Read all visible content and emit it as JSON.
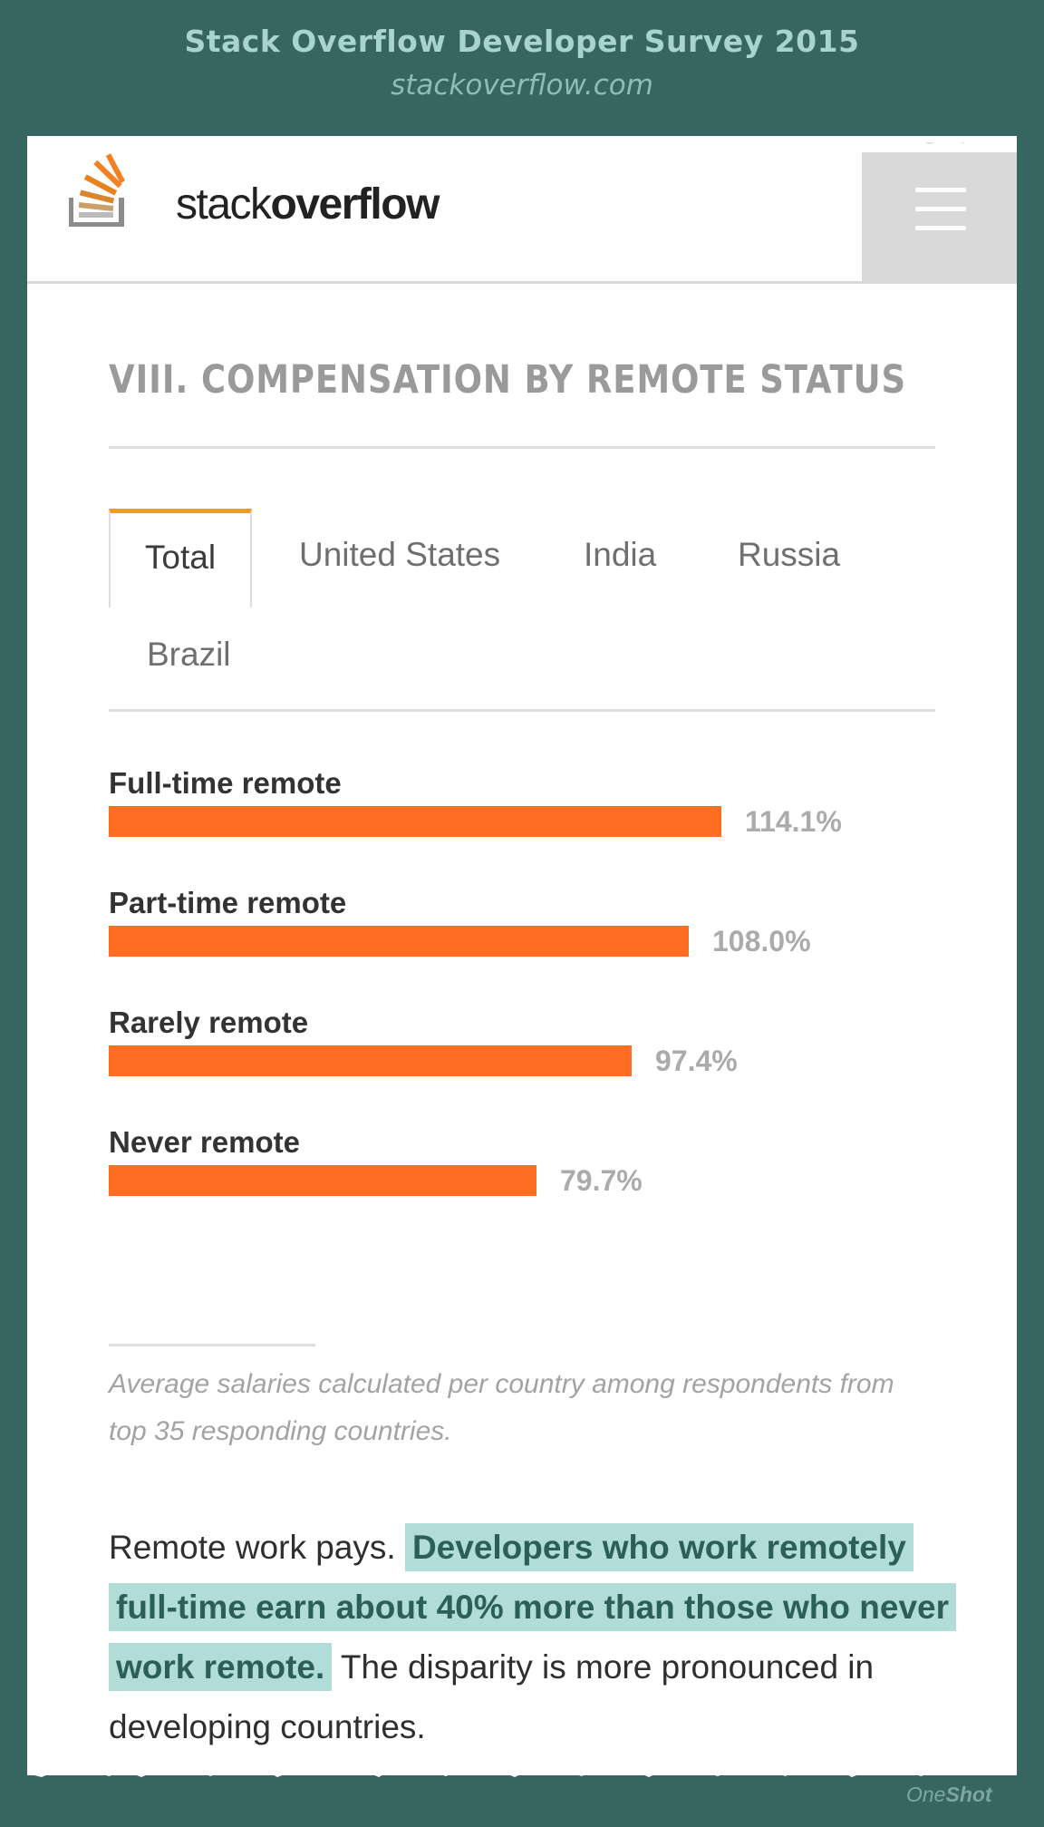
{
  "header": {
    "title": "Stack Overflow Developer Survey 2015",
    "subtitle": "stackoverflow.com"
  },
  "navbar": {
    "logo_text_light": "stack",
    "logo_text_bold": "overflow",
    "menu_icon": "hamburger-menu-icon"
  },
  "section": {
    "title": "VIII. COMPENSATION BY REMOTE STATUS"
  },
  "tabs": [
    {
      "label": "Total",
      "active": true
    },
    {
      "label": "United States",
      "active": false
    },
    {
      "label": "India",
      "active": false
    },
    {
      "label": "Russia",
      "active": false
    },
    {
      "label": "Brazil",
      "active": false
    }
  ],
  "chart_data": {
    "type": "bar",
    "orientation": "horizontal",
    "categories": [
      "Full-time remote",
      "Part-time remote",
      "Rarely remote",
      "Never remote"
    ],
    "values": [
      114.1,
      108.0,
      97.4,
      79.7
    ],
    "value_labels": [
      "114.1%",
      "108.0%",
      "97.4%",
      "79.7%"
    ],
    "color": "#ff6e22",
    "grid": false
  },
  "footnote": "Average salaries calculated per country among respondents from top 35 responding countries.",
  "body": {
    "lead": "Remote work pays. ",
    "highlight": "Developers who work remotely full-time earn about 40% more than those who never work remote.",
    "rest": " The disparity is more pronounced in developing countries."
  },
  "branding": {
    "one": "One",
    "shot": "Shot"
  },
  "colors": {
    "background": "#376561",
    "accent_orange": "#ff6e22",
    "tab_accent": "#f79a1e",
    "highlight": "#b2dcd7"
  }
}
